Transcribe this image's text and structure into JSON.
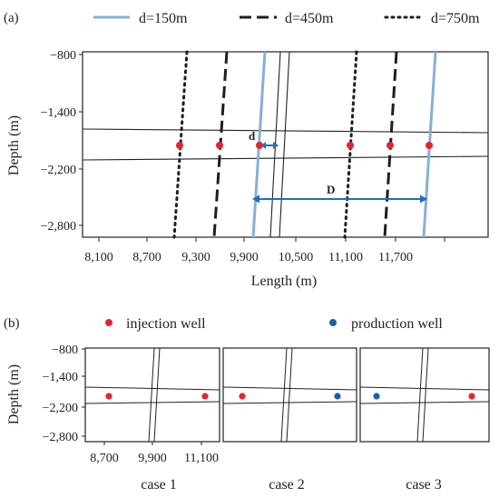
{
  "panel_a": {
    "label": "(a)",
    "legend": [
      {
        "label": "d=150m",
        "style": "solid",
        "color": "#86afd9"
      },
      {
        "label": "d=450m",
        "style": "dashed",
        "color": "#1e1e1e"
      },
      {
        "label": "d=750m",
        "style": "dotted",
        "color": "#1e1e1e"
      }
    ],
    "ylabel": "Depth (m)",
    "xlabel": "Length (m)",
    "y_ticks": [
      "−800",
      "−1,400",
      "−2,200",
      "−2,800"
    ],
    "x_ticks": [
      "8,100",
      "8,700",
      "9,300",
      "9,900",
      "10,500",
      "11,100",
      "11,700"
    ],
    "annotation_d": "d",
    "annotation_D": "D",
    "arrow_color": "#1f6fb8"
  },
  "panel_b": {
    "label": "(b)",
    "legend": [
      {
        "label": "injection well",
        "color": "#e5252a"
      },
      {
        "label": "production well",
        "color": "#1f5fa8"
      }
    ],
    "ylabel": "Depth (m)",
    "y_ticks": [
      "−800",
      "−1,400",
      "−2,200",
      "−2,800"
    ],
    "x_ticks": [
      "8,700",
      "9,900",
      "11,100"
    ],
    "cases": [
      {
        "label": "case 1",
        "left_well": "injection",
        "right_well": "injection"
      },
      {
        "label": "case 2",
        "left_well": "injection",
        "right_well": "production"
      },
      {
        "label": "case 3",
        "left_well": "production",
        "right_well": "injection"
      }
    ]
  }
}
